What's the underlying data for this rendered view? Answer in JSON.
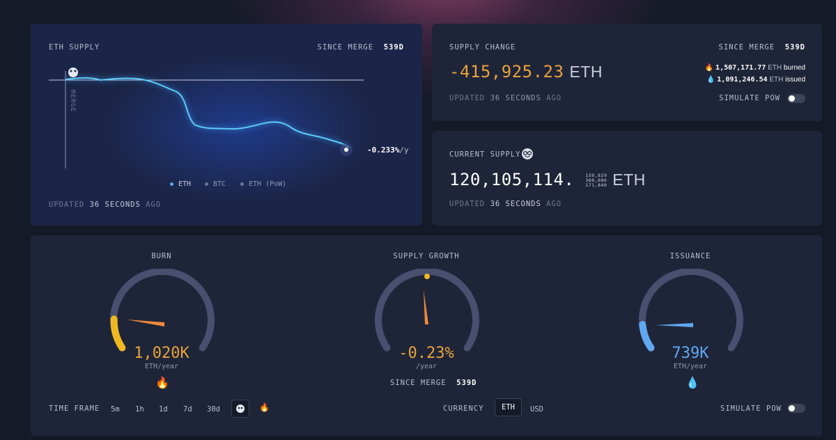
{
  "supply_card": {
    "title": "ETH SUPPLY",
    "since_label": "SINCE MERGE",
    "since_value": "539d",
    "merge_label": "MERGE",
    "rate": "-0.233%",
    "rate_unit": "/y",
    "legend": [
      "ETH",
      "BTC",
      "ETH (PoW)"
    ],
    "updated_prefix": "UPDATED",
    "updated_value": "36 SECONDS",
    "updated_suffix": "AGO"
  },
  "change_card": {
    "title": "SUPPLY CHANGE",
    "since_label": "SINCE MERGE",
    "since_value": "539d",
    "value": "-415,925.23",
    "unit": "ETH",
    "burned_value": "1,507,171.77",
    "burned_unit": "ETH",
    "burned_label": "burned",
    "issued_value": "1,091,246.54",
    "issued_unit": "ETH",
    "issued_label": "issued",
    "updated_prefix": "UPDATED",
    "updated_value": "36 SECONDS",
    "updated_suffix": "AGO",
    "simulate_label": "SIMULATE PoW"
  },
  "current_card": {
    "title": "CURRENT SUPPLY",
    "value": "120,105,114.",
    "decimals": [
      "159,829",
      "368,686",
      "171,840"
    ],
    "unit": "ETH",
    "updated_prefix": "UPDATED",
    "updated_value": "36 SECONDS",
    "updated_suffix": "AGO"
  },
  "gauges": {
    "burn": {
      "title": "BURN",
      "value": "1,020K",
      "unit": "ETH/year"
    },
    "growth": {
      "title": "SUPPLY GROWTH",
      "value": "-0.23%",
      "unit": "/year",
      "since_label": "SINCE MERGE",
      "since_value": "539d"
    },
    "issuance": {
      "title": "ISSUANCE",
      "value": "739K",
      "unit": "ETH/year"
    }
  },
  "controls": {
    "timeframe_label": "TIME FRAME",
    "timeframes": [
      "5m",
      "1h",
      "1d",
      "7d",
      "30d"
    ],
    "currency_label": "CURRENCY",
    "currencies": [
      "ETH",
      "USD"
    ],
    "simulate_label": "SIMULATE PoW"
  },
  "colors": {
    "accent_orange": "#e9a23b",
    "issuance_blue": "#5fa8f0",
    "chart_line": "#5ecbf7",
    "card_bg": "#1f2538"
  }
}
